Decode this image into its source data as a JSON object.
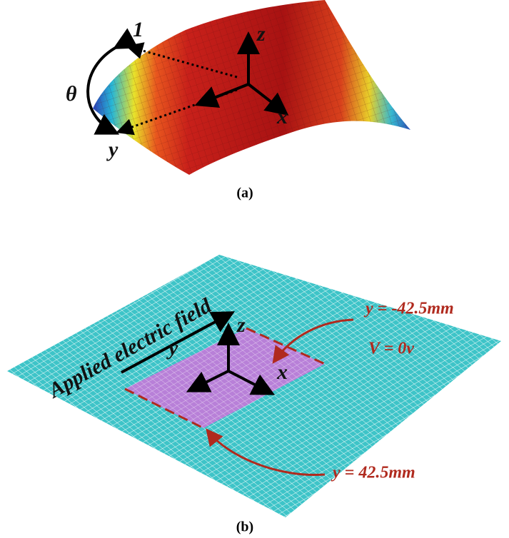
{
  "panel_a": {
    "labels": {
      "axis_1": "1",
      "axis_z": "z",
      "theta": "θ",
      "axis_x": "x",
      "axis_y": "y"
    },
    "caption": "(a)"
  },
  "panel_b": {
    "field_label": "Applied electric field",
    "labels": {
      "axis_z": "z",
      "axis_y": "y",
      "axis_x": "x"
    },
    "top_boundary": "y = -42.5mm",
    "top_voltage": "V = 0v",
    "bottom_boundary": "y = 42.5mm",
    "caption": "(b)"
  }
}
